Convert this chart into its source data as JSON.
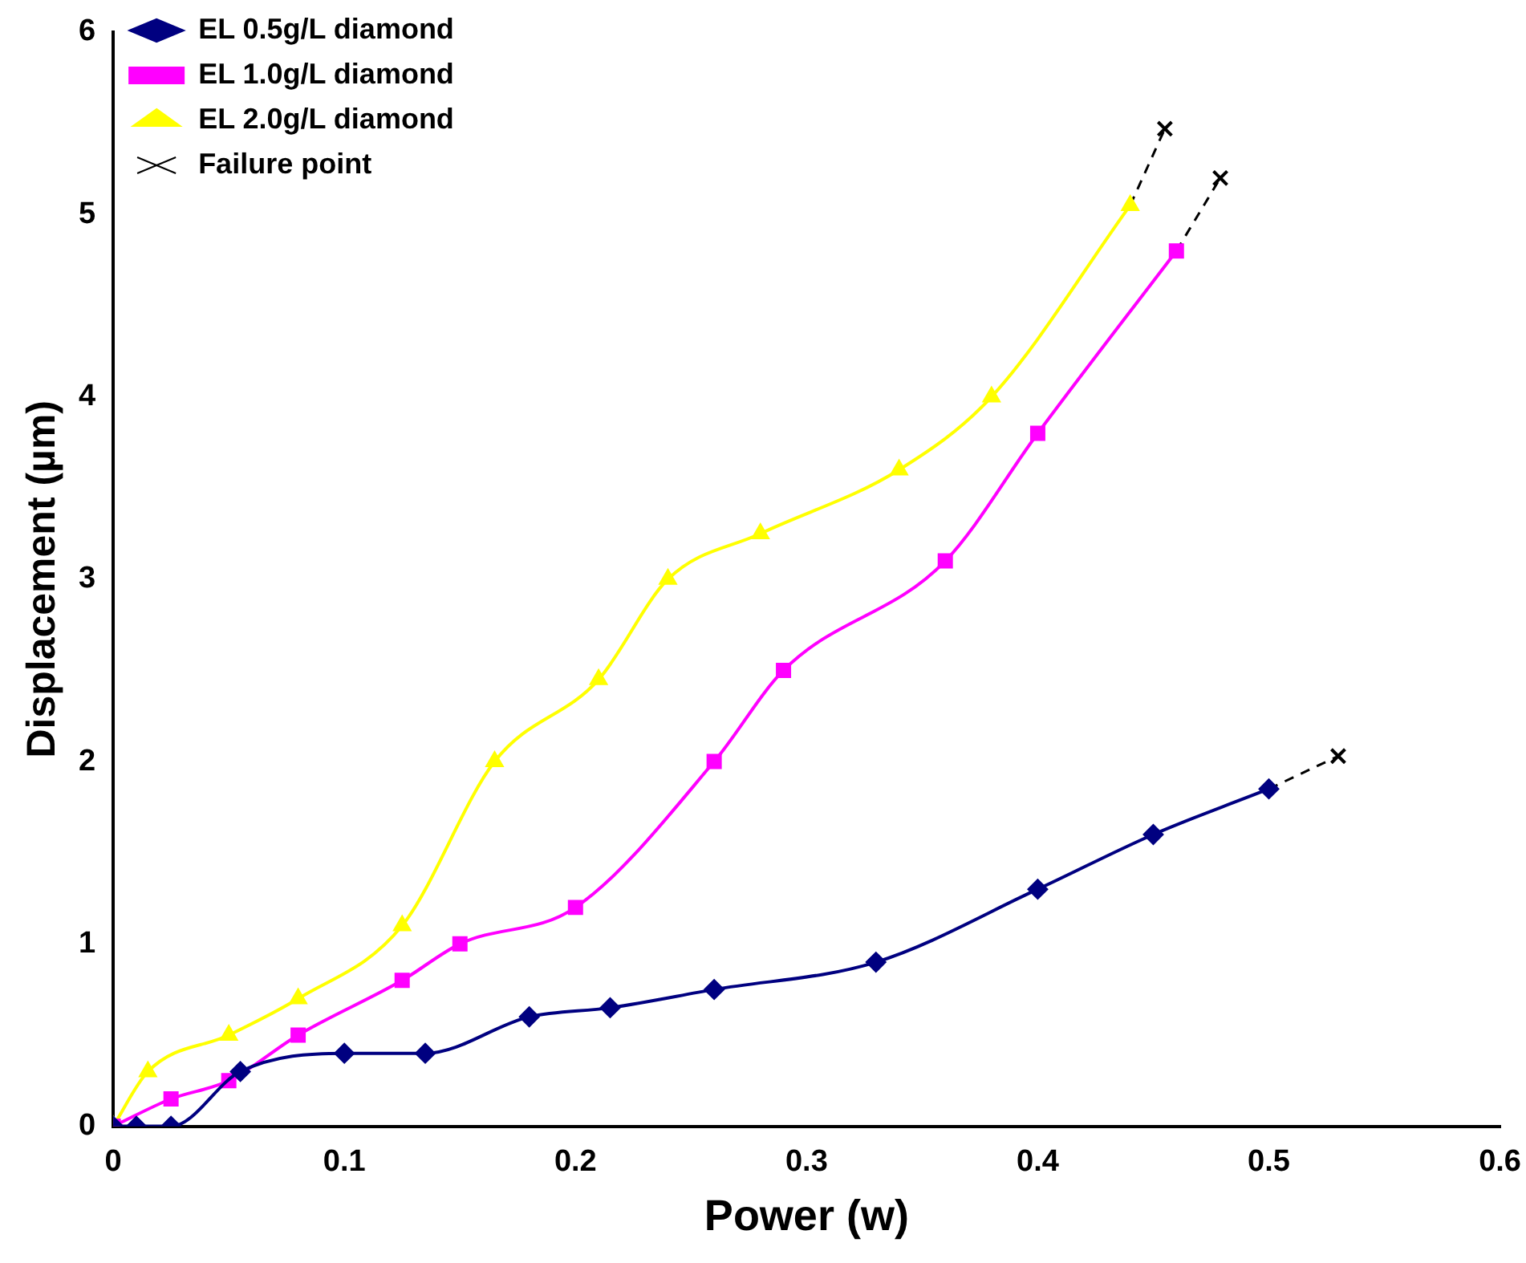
{
  "chart_data": {
    "type": "line",
    "xlabel": "Power (w)",
    "ylabel": "Displacement (µm)",
    "xlim": [
      0,
      0.6
    ],
    "xticks": [
      0,
      0.1,
      0.2,
      0.3,
      0.4,
      0.5,
      0.6
    ],
    "ylim": [
      0,
      6
    ],
    "yticks": [
      0,
      1,
      2,
      3,
      4,
      5,
      6
    ],
    "grid": false,
    "legend": "top left",
    "series": [
      {
        "name": "EL 0.5g/L diamond",
        "color": "#000080",
        "marker": "diamond",
        "x": [
          0,
          0.01,
          0.025,
          0.055,
          0.1,
          0.135,
          0.18,
          0.215,
          0.26,
          0.33,
          0.4,
          0.45,
          0.5
        ],
        "values": [
          0,
          0,
          0,
          0.3,
          0.4,
          0.4,
          0.6,
          0.65,
          0.75,
          0.9,
          1.3,
          1.6,
          1.85
        ]
      },
      {
        "name": "EL 1.0g/L diamond",
        "color": "#ff00ff",
        "marker": "square",
        "x": [
          0,
          0.025,
          0.05,
          0.08,
          0.125,
          0.15,
          0.2,
          0.26,
          0.29,
          0.36,
          0.4,
          0.46
        ],
        "values": [
          0,
          0.15,
          0.25,
          0.5,
          0.8,
          1.0,
          1.2,
          2.0,
          2.5,
          3.1,
          3.8,
          4.8
        ]
      },
      {
        "name": "EL 2.0g/L diamond",
        "color": "#ffff00",
        "marker": "triangle",
        "x": [
          0,
          0.015,
          0.05,
          0.08,
          0.125,
          0.165,
          0.21,
          0.24,
          0.28,
          0.34,
          0.38,
          0.44
        ],
        "values": [
          0,
          0.3,
          0.5,
          0.7,
          1.1,
          2.0,
          2.45,
          3.0,
          3.25,
          3.6,
          4.0,
          5.05
        ]
      },
      {
        "name": "Failure point",
        "color": "#000000",
        "marker": "cross",
        "line_style": "dashed",
        "x": [
          0.44,
          0.455,
          null,
          0.46,
          0.479,
          null,
          0.5,
          0.53
        ],
        "values": [
          5.05,
          5.47,
          null,
          4.8,
          5.2,
          null,
          1.85,
          2.03
        ]
      }
    ]
  }
}
